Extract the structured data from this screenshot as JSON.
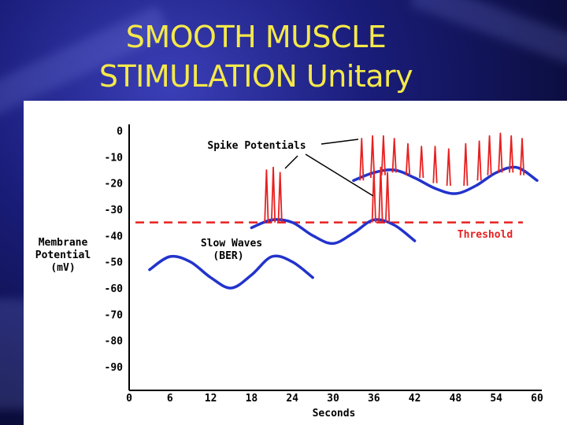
{
  "slide": {
    "title_line1": "SMOOTH MUSCLE",
    "title_line2": "STIMULATION Unitary"
  },
  "chart_data": {
    "type": "line",
    "title": "",
    "xlabel": "Seconds",
    "ylabel": [
      "Membrane",
      "Potential",
      "(mV)"
    ],
    "xlim": [
      0,
      60
    ],
    "ylim": [
      -90,
      0
    ],
    "x_ticks": [
      0,
      6,
      12,
      18,
      24,
      30,
      36,
      42,
      48,
      54,
      60
    ],
    "y_ticks": [
      0,
      -10,
      -20,
      -30,
      -40,
      -50,
      -60,
      -70,
      -80,
      -90
    ],
    "threshold": {
      "value": -35,
      "label": "Threshold"
    },
    "annotations": {
      "spike_potentials": "Spike Potentials",
      "slow_waves_line1": "Slow Waves",
      "slow_waves_line2": "(BER)"
    },
    "series": [
      {
        "x": [
          3,
          6,
          9,
          12,
          15,
          18,
          21,
          24,
          27
        ],
        "y": [
          -53,
          -48,
          -50,
          -56,
          -60,
          -55,
          -48,
          -50,
          -56
        ]
      },
      {
        "x": [
          18,
          21,
          24,
          27,
          30,
          33,
          36,
          39,
          42
        ],
        "y": [
          -37,
          -34,
          -35,
          -40,
          -43,
          -39,
          -34,
          -36,
          -42
        ]
      },
      {
        "x": [
          33,
          36,
          39,
          42,
          45,
          48,
          51,
          54,
          57,
          60
        ],
        "y": [
          -19,
          -16,
          -15,
          -18,
          -22,
          -24,
          -21,
          -16,
          -14,
          -19
        ]
      }
    ],
    "spikes": [
      {
        "x": 20.2,
        "base": -35,
        "peak": -15
      },
      {
        "x": 21.2,
        "base": -35,
        "peak": -14
      },
      {
        "x": 22.2,
        "base": -35,
        "peak": -16
      },
      {
        "x": 36.0,
        "base": -35,
        "peak": -15
      },
      {
        "x": 37.0,
        "base": -35,
        "peak": -14
      },
      {
        "x": 38.0,
        "base": -35,
        "peak": -16
      },
      {
        "x": 34.2,
        "base": -19,
        "peak": -3
      },
      {
        "x": 35.8,
        "base": -18,
        "peak": -2
      },
      {
        "x": 37.4,
        "base": -17,
        "peak": -2
      },
      {
        "x": 39.0,
        "base": -16,
        "peak": -3
      },
      {
        "x": 41.0,
        "base": -17,
        "peak": -5
      },
      {
        "x": 43.0,
        "base": -18,
        "peak": -6
      },
      {
        "x": 45.0,
        "base": -20,
        "peak": -6
      },
      {
        "x": 47.0,
        "base": -21,
        "peak": -7
      },
      {
        "x": 49.5,
        "base": -21,
        "peak": -5
      },
      {
        "x": 51.5,
        "base": -19,
        "peak": -4
      },
      {
        "x": 53.0,
        "base": -17,
        "peak": -2
      },
      {
        "x": 54.6,
        "base": -16,
        "peak": -1
      },
      {
        "x": 56.2,
        "base": -16,
        "peak": -2
      },
      {
        "x": 57.8,
        "base": -17,
        "peak": -3
      }
    ],
    "colors": {
      "slow_wave": "#2233cc",
      "spike": "#e82020",
      "threshold": "#e82020",
      "threshold_label": "#e82020",
      "axis": "#000000"
    }
  }
}
